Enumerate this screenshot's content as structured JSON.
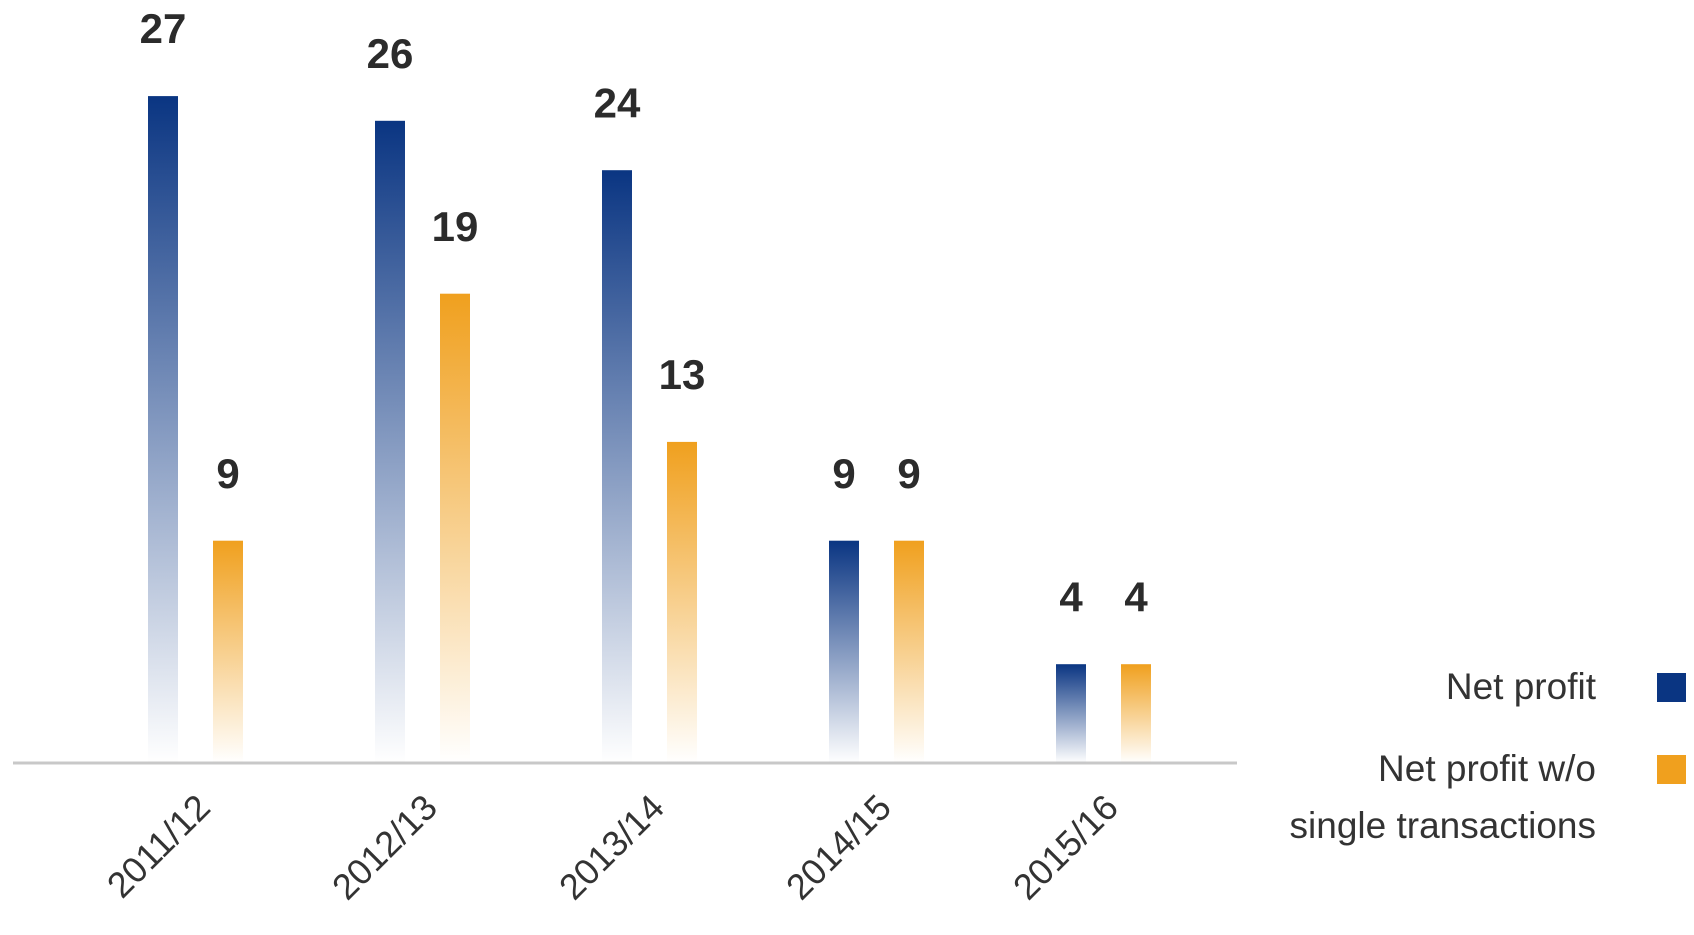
{
  "chart_data": {
    "type": "bar",
    "categories": [
      "2011/12",
      "2012/13",
      "2013/14",
      "2014/15",
      "2015/16"
    ],
    "series": [
      {
        "name": "Net profit",
        "color": "#0a3582",
        "values": [
          27,
          26,
          24,
          9,
          4
        ]
      },
      {
        "name": "Net profit w/o\nsingle transactions",
        "color": "#f0a01e",
        "values": [
          9,
          19,
          13,
          9,
          4
        ]
      }
    ],
    "ylim": [
      0,
      30
    ],
    "legend": "right"
  }
}
